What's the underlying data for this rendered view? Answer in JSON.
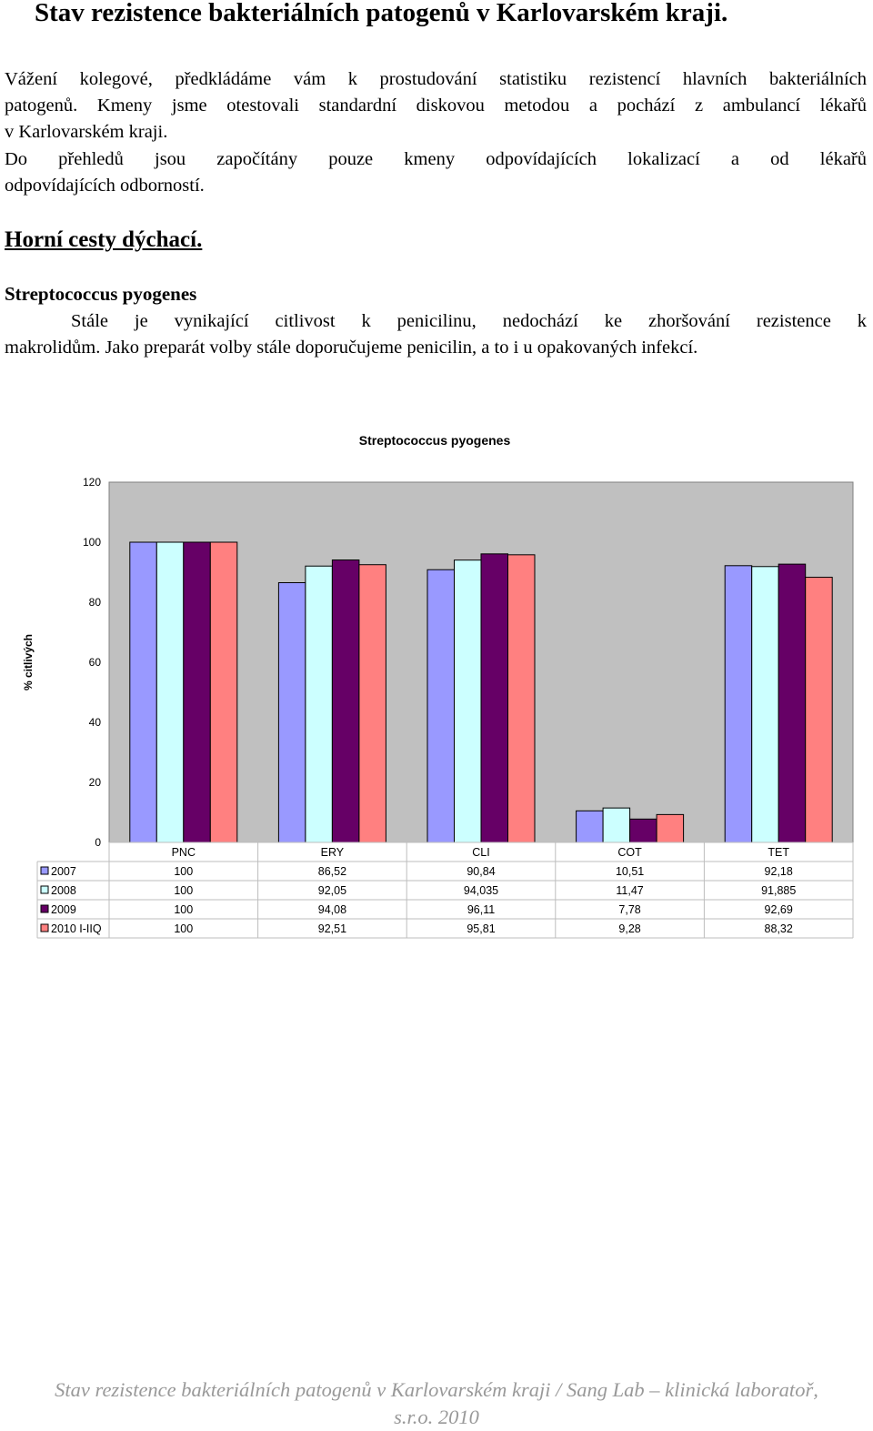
{
  "document": {
    "title": "Stav rezistence bakteriálních patogenů v Karlovarském kraji.",
    "intro_line1": "Vážení kolegové, předkládáme vám k prostudování statistiku rezistencí hlavních bakteriálních",
    "intro_line2": "patogenů. Kmeny jsme otestovali standardní diskovou metodou a pochází z ambulancí lékařů",
    "intro_line3": "v Karlovarském kraji.",
    "note_line1": "Do přehledů jsou započítány pouze kmeny odpovídajících lokalizací a od lékařů",
    "note_line2": "odpovídajících odborností.",
    "section_heading": "Horní cesty dýchací.",
    "organism_heading": "Streptococcus pyogenes",
    "organism_text_line1": "Stále je vynikající citlivost k penicilinu, nedochází ke zhoršování rezistence k",
    "organism_text_line2": "makrolidům. Jako preparát volby stále doporučujeme penicilin, a to i u opakovaných infekcí.",
    "footer_line1": "Stav rezistence bakteriálních patogenů v Karlovarském kraji / Sang Lab – klinická laboratoř,",
    "footer_line2": "s.r.o. 2010"
  },
  "chart_data": {
    "type": "bar",
    "title": "Streptococcus pyogenes",
    "xlabel": "",
    "ylabel": "% citlivých",
    "ylim": [
      0,
      120
    ],
    "yticks": [
      0,
      20,
      40,
      60,
      80,
      100,
      120
    ],
    "grid": false,
    "legend": "data-table",
    "categories": [
      "PNC",
      "ERY",
      "CLI",
      "COT",
      "TET"
    ],
    "series": [
      {
        "name": "2007",
        "color": "#9999ff",
        "values": [
          100,
          86.52,
          90.84,
          10.51,
          92.18
        ],
        "labels": [
          "100",
          "86,52",
          "90,84",
          "10,51",
          "92,18"
        ]
      },
      {
        "name": "2008",
        "color": "#ccffff",
        "values": [
          100,
          92.05,
          94.035,
          11.47,
          91.885
        ],
        "labels": [
          "100",
          "92,05",
          "94,035",
          "11,47",
          "91,885"
        ]
      },
      {
        "name": "2009",
        "color": "#660066",
        "values": [
          100,
          94.08,
          96.11,
          7.78,
          92.69
        ],
        "labels": [
          "100",
          "94,08",
          "96,11",
          "7,78",
          "92,69"
        ]
      },
      {
        "name": "2010 I-IIQ",
        "color": "#ff8080",
        "values": [
          100,
          92.51,
          95.81,
          9.28,
          88.32
        ],
        "labels": [
          "100",
          "92,51",
          "95,81",
          "9,28",
          "88,32"
        ]
      }
    ],
    "colors": {
      "plot_background": "#c0c0c0",
      "bar_outline": "#000000",
      "table_border": "#bdbdbd"
    }
  }
}
